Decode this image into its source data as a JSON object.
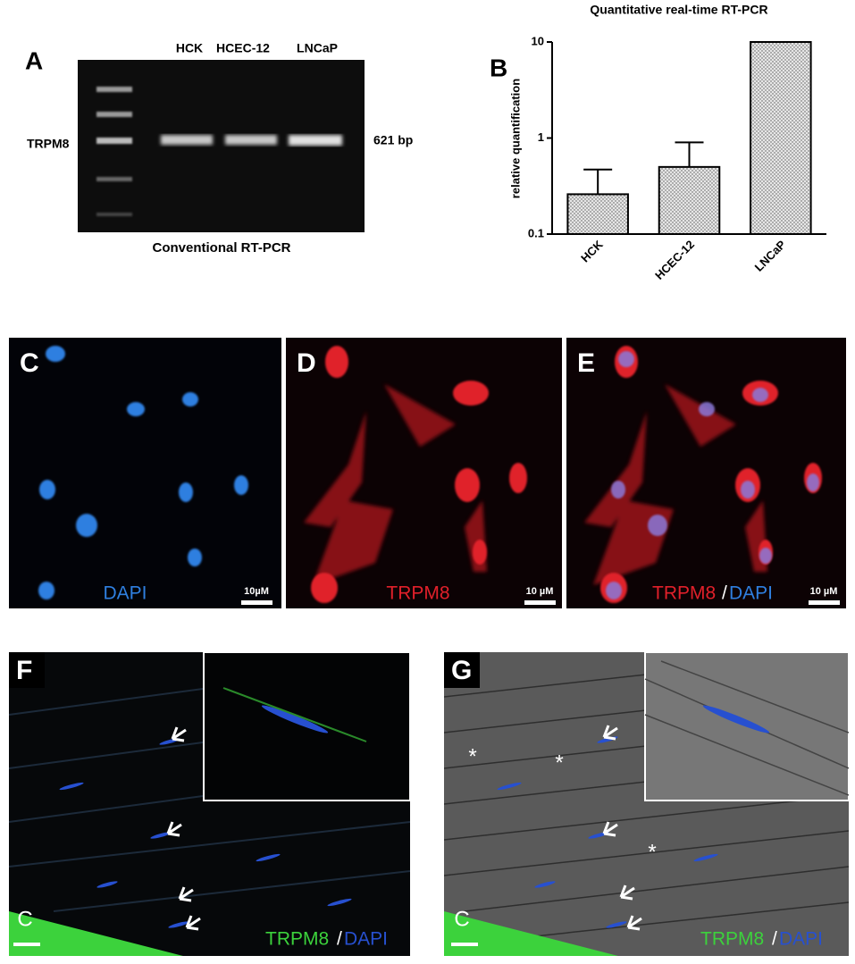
{
  "panel_a": {
    "label": "A",
    "lanes": [
      "HCK",
      "HCEC-12",
      "LNCaP"
    ],
    "gene": "TRPM8",
    "band_size": "621 bp",
    "caption": "Conventional RT-PCR"
  },
  "chart_data": {
    "type": "bar",
    "panel_label": "B",
    "title": "Quantitative real-time RT-PCR",
    "y_label": "relative quantification",
    "categories": [
      "HCK",
      "HCEC-12",
      "LNCaP"
    ],
    "values": [
      0.26,
      0.5,
      10
    ],
    "errors": [
      0.21,
      0.4,
      null
    ],
    "color": "#e6e6e6",
    "log_scale": true,
    "ylim": [
      0.1,
      10
    ],
    "yticks": [
      0.1,
      1,
      10
    ]
  },
  "panel_c": {
    "label": "C",
    "stain": "DAPI",
    "scale": "10µM"
  },
  "panel_d": {
    "label": "D",
    "stain": "TRPM8",
    "scale": "10 µM"
  },
  "panel_e": {
    "label": "E",
    "stain": [
      "TRPM8",
      "/",
      "DAPI"
    ],
    "scale": "10 µM"
  },
  "panel_f": {
    "label": "F",
    "region": "C",
    "stain": [
      "TRPM8",
      "/",
      "DAPI"
    ]
  },
  "panel_g": {
    "label": "G",
    "region": "C",
    "markers": [
      "*",
      "*",
      "*"
    ],
    "stain": [
      "TRPM8",
      "/",
      "DAPI"
    ]
  }
}
